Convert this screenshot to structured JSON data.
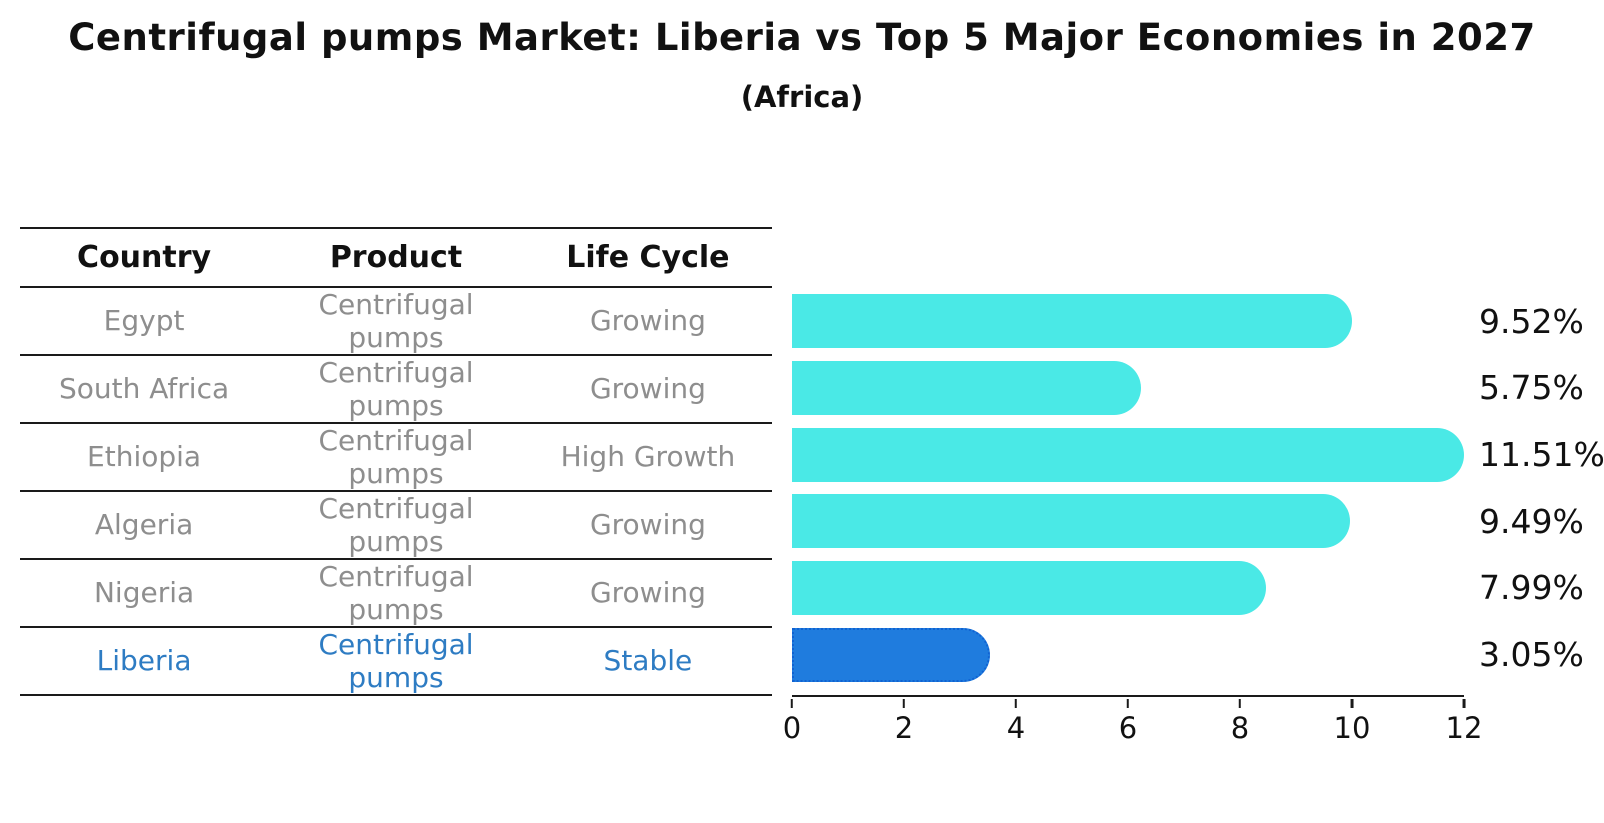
{
  "header": {
    "title": "Centrifugal pumps Market: Liberia vs Top 5 Major Economies in 2027",
    "subtitle": "(Africa)"
  },
  "table": {
    "columns": [
      "Country",
      "Product",
      "Life Cycle"
    ],
    "rows": [
      {
        "country": "Egypt",
        "product": "Centrifugal pumps",
        "life_cycle": "Growing"
      },
      {
        "country": "South Africa",
        "product": "Centrifugal pumps",
        "life_cycle": "Growing"
      },
      {
        "country": "Ethiopia",
        "product": "Centrifugal pumps",
        "life_cycle": "High Growth"
      },
      {
        "country": "Algeria",
        "product": "Centrifugal pumps",
        "life_cycle": "Growing"
      },
      {
        "country": "Nigeria",
        "product": "Centrifugal pumps",
        "life_cycle": "Growing"
      },
      {
        "country": "Liberia",
        "product": "Centrifugal pumps",
        "life_cycle": "Stable"
      }
    ]
  },
  "chart_data": {
    "type": "bar",
    "orientation": "horizontal",
    "title": "Centrifugal pumps Market: Liberia vs Top 5 Major Economies in 2027",
    "subtitle": "(Africa)",
    "categories": [
      "Egypt",
      "South Africa",
      "Ethiopia",
      "Algeria",
      "Nigeria",
      "Liberia"
    ],
    "values": [
      9.52,
      5.75,
      11.51,
      9.49,
      7.99,
      3.05
    ],
    "labels": [
      "9.52%",
      "5.75%",
      "11.51%",
      "9.49%",
      "7.99%",
      "3.05%"
    ],
    "xlim": [
      0,
      12
    ],
    "x_ticks": [
      0,
      2,
      4,
      6,
      8,
      10,
      12
    ],
    "grid": false,
    "legend": false,
    "bar_color": "#4ae9e6",
    "highlight_color": "#1f7cde",
    "highlight_edge_color": "#1062d2",
    "highlight_index": 5,
    "highlight_category": "Liberia",
    "value_label_color": "#111111",
    "row_text_color": "#8e8e8e",
    "highlight_text_color": "#2e7cc3"
  }
}
